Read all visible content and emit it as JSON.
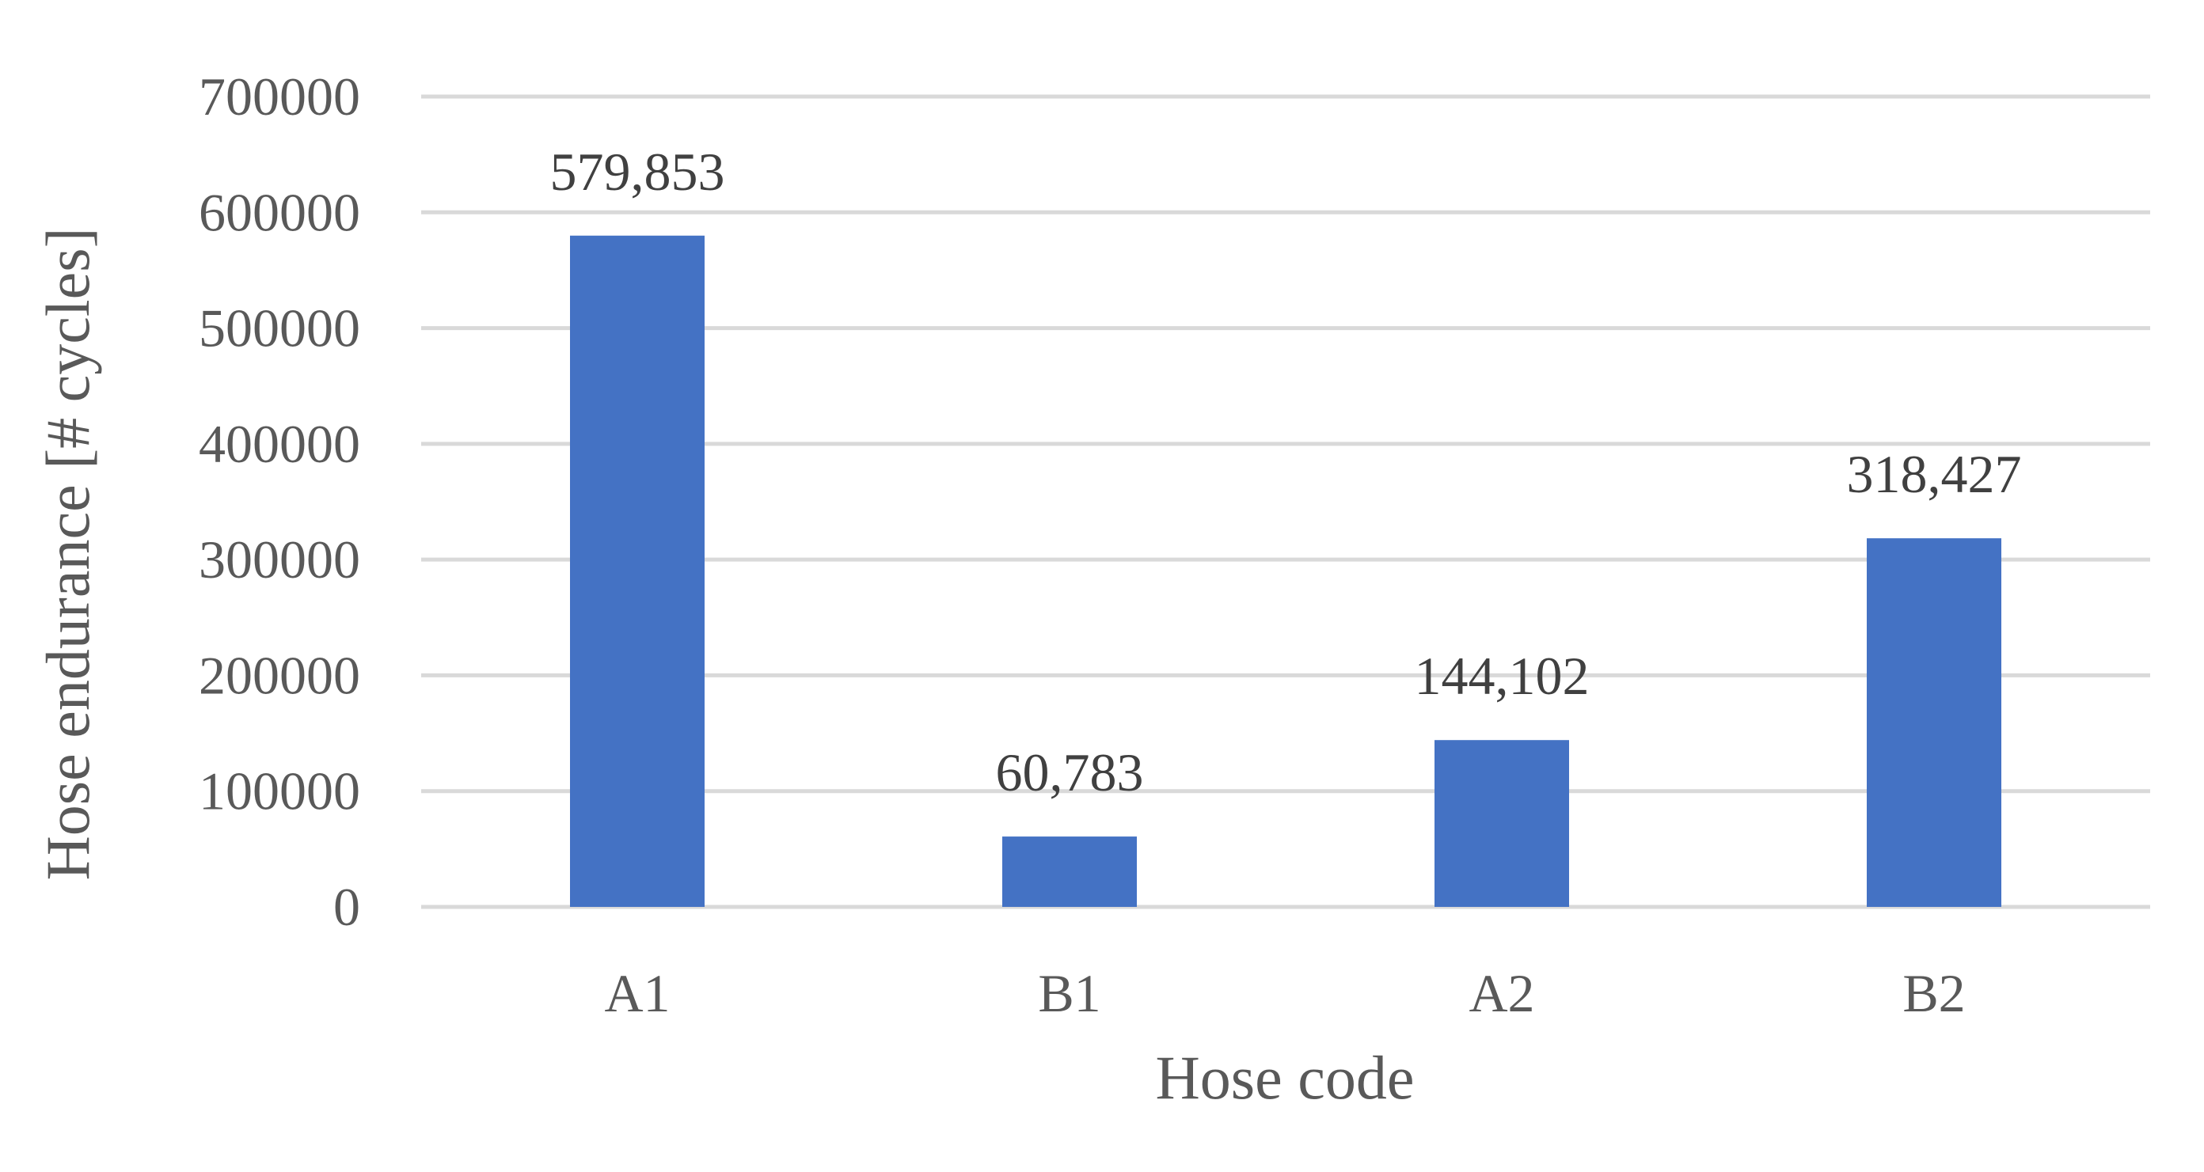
{
  "chart_data": {
    "type": "bar",
    "title": "",
    "xlabel": "Hose code",
    "ylabel": "Hose endurance [# cycles]",
    "categories": [
      "A1",
      "B1",
      "A2",
      "B2"
    ],
    "values": [
      579853,
      60783,
      144102,
      318427
    ],
    "data_labels": [
      "579,853",
      "60,783",
      "144,102",
      "318,427"
    ],
    "ylim": [
      0,
      700000
    ],
    "y_ticks": [
      0,
      100000,
      200000,
      300000,
      400000,
      500000,
      600000,
      700000
    ],
    "y_tick_labels": [
      "0",
      "100000",
      "200000",
      "300000",
      "400000",
      "500000",
      "600000",
      "700000"
    ],
    "grid": true,
    "legend": "none",
    "bar_color": "#4472C4",
    "gridline_color": "#D9D9D9"
  }
}
